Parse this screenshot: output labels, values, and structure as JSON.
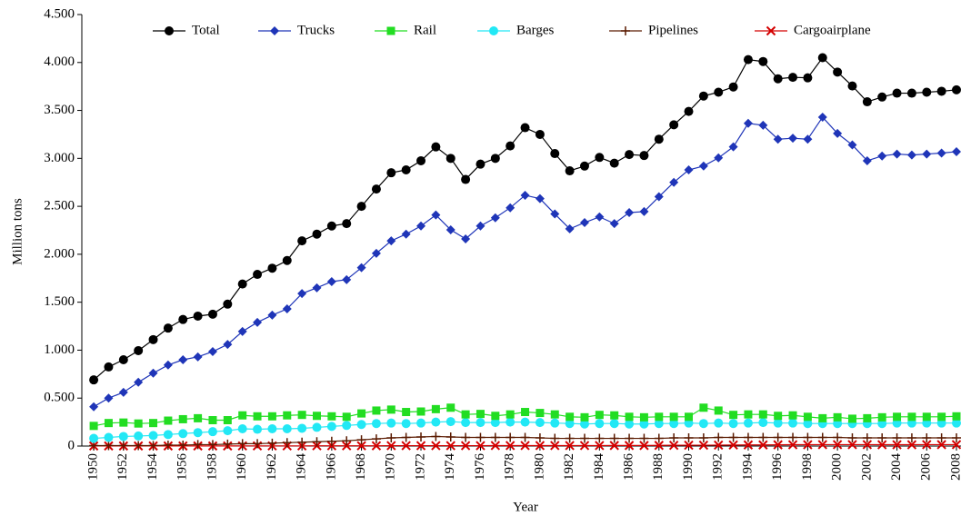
{
  "chart_data": {
    "type": "line",
    "y_label": "Million tons",
    "x_label": "Year",
    "x": [
      1950,
      1951,
      1952,
      1953,
      1954,
      1955,
      1956,
      1957,
      1958,
      1959,
      1960,
      1961,
      1962,
      1963,
      1964,
      1965,
      1966,
      1967,
      1968,
      1969,
      1970,
      1971,
      1972,
      1973,
      1974,
      1975,
      1976,
      1977,
      1978,
      1979,
      1980,
      1981,
      1982,
      1983,
      1984,
      1985,
      1986,
      1987,
      1988,
      1989,
      1990,
      1991,
      1992,
      1993,
      1994,
      1995,
      1996,
      1997,
      1998,
      1999,
      2000,
      2001,
      2002,
      2003,
      2004,
      2005,
      2006,
      2007,
      2008
    ],
    "xlim": [
      1949.2,
      2008
    ],
    "xticks": [
      1950,
      1952,
      1954,
      1956,
      1958,
      1960,
      1962,
      1964,
      1966,
      1968,
      1970,
      1972,
      1974,
      1976,
      1978,
      1980,
      1982,
      1984,
      1986,
      1988,
      1990,
      1992,
      1994,
      1996,
      1998,
      2000,
      2002,
      2004,
      2006,
      2008
    ],
    "ylim": [
      0,
      4500
    ],
    "yticks": [
      0,
      {
        "value": 500,
        "label": "0.500"
      },
      {
        "value": 1000,
        "label": "1.000"
      },
      {
        "value": 1500,
        "label": "1.500"
      },
      {
        "value": 2000,
        "label": "2.000"
      },
      {
        "value": 2500,
        "label": "2.500"
      },
      {
        "value": 3000,
        "label": "3.000"
      },
      {
        "value": 3500,
        "label": "3.500"
      },
      {
        "value": 4000,
        "label": "4.000"
      },
      {
        "value": 4500,
        "label": "4.500"
      }
    ],
    "legend": "top",
    "series": [
      {
        "name": "Total",
        "color": "#000000",
        "marker": "circle",
        "values": [
          690,
          825,
          900,
          995,
          1110,
          1230,
          1320,
          1355,
          1375,
          1480,
          1690,
          1790,
          1855,
          1935,
          2140,
          2210,
          2295,
          2320,
          2500,
          2680,
          2850,
          2880,
          2975,
          3120,
          3000,
          2780,
          2940,
          3000,
          3130,
          3320,
          3250,
          3050,
          2870,
          2920,
          3010,
          2950,
          3040,
          3030,
          3200,
          3350,
          3490,
          3650,
          3690,
          3745,
          4030,
          4010,
          3830,
          3845,
          3840,
          4050,
          3900,
          3755,
          3590,
          3640,
          3680,
          3680,
          3690,
          3700,
          3715
        ]
      },
      {
        "name": "Trucks",
        "color": "#1f35b8",
        "marker": "diamond",
        "values": [
          410,
          500,
          560,
          665,
          760,
          845,
          900,
          930,
          985,
          1060,
          1195,
          1290,
          1365,
          1430,
          1590,
          1650,
          1715,
          1735,
          1860,
          2010,
          2140,
          2210,
          2295,
          2410,
          2255,
          2160,
          2295,
          2380,
          2485,
          2615,
          2580,
          2420,
          2265,
          2330,
          2390,
          2320,
          2435,
          2445,
          2600,
          2750,
          2880,
          2920,
          3005,
          3120,
          3365,
          3345,
          3200,
          3210,
          3200,
          3430,
          3260,
          3140,
          2975,
          3025,
          3045,
          3035,
          3045,
          3055,
          3070
        ]
      },
      {
        "name": "Rail",
        "color": "#22dd22",
        "marker": "square",
        "values": [
          210,
          240,
          245,
          235,
          240,
          265,
          280,
          290,
          270,
          270,
          320,
          310,
          310,
          320,
          325,
          315,
          310,
          305,
          340,
          370,
          380,
          355,
          360,
          385,
          400,
          330,
          335,
          315,
          330,
          355,
          345,
          330,
          305,
          300,
          325,
          320,
          305,
          300,
          305,
          305,
          305,
          400,
          370,
          325,
          330,
          330,
          315,
          320,
          305,
          290,
          300,
          285,
          290,
          300,
          305,
          305,
          305,
          305,
          310
        ]
      },
      {
        "name": "Barges",
        "color": "#22e8f5",
        "marker": "circle",
        "values": [
          80,
          90,
          100,
          105,
          110,
          120,
          130,
          140,
          150,
          160,
          180,
          175,
          180,
          180,
          185,
          195,
          205,
          215,
          225,
          235,
          240,
          235,
          240,
          250,
          255,
          245,
          245,
          245,
          250,
          250,
          245,
          240,
          235,
          230,
          235,
          235,
          230,
          230,
          235,
          235,
          240,
          235,
          240,
          235,
          240,
          245,
          240,
          240,
          235,
          235,
          235,
          235,
          235,
          235,
          240,
          240,
          240,
          240,
          240
        ]
      },
      {
        "name": "Pipelines",
        "color": "#5a1a00",
        "marker": "plus",
        "values": [
          5,
          5,
          5,
          5,
          5,
          10,
          10,
          15,
          15,
          20,
          25,
          25,
          30,
          35,
          40,
          45,
          50,
          55,
          65,
          75,
          85,
          90,
          95,
          100,
          95,
          90,
          90,
          90,
          90,
          90,
          85,
          80,
          80,
          80,
          80,
          80,
          80,
          80,
          80,
          85,
          85,
          85,
          90,
          90,
          90,
          90,
          90,
          90,
          90,
          90,
          90,
          85,
          85,
          85,
          85,
          85,
          85,
          85,
          85
        ]
      },
      {
        "name": "Cargoairplane",
        "color": "#d40000",
        "marker": "x",
        "values": [
          1,
          1,
          1,
          1,
          1,
          1,
          1,
          1,
          1,
          1,
          2,
          2,
          2,
          2,
          2,
          3,
          3,
          3,
          3,
          3,
          4,
          4,
          4,
          4,
          4,
          4,
          4,
          5,
          5,
          5,
          5,
          5,
          5,
          5,
          5,
          6,
          6,
          6,
          7,
          8,
          9,
          9,
          10,
          11,
          12,
          12,
          13,
          14,
          14,
          15,
          15,
          15,
          15,
          14,
          14,
          14,
          15,
          15,
          15
        ]
      }
    ]
  }
}
